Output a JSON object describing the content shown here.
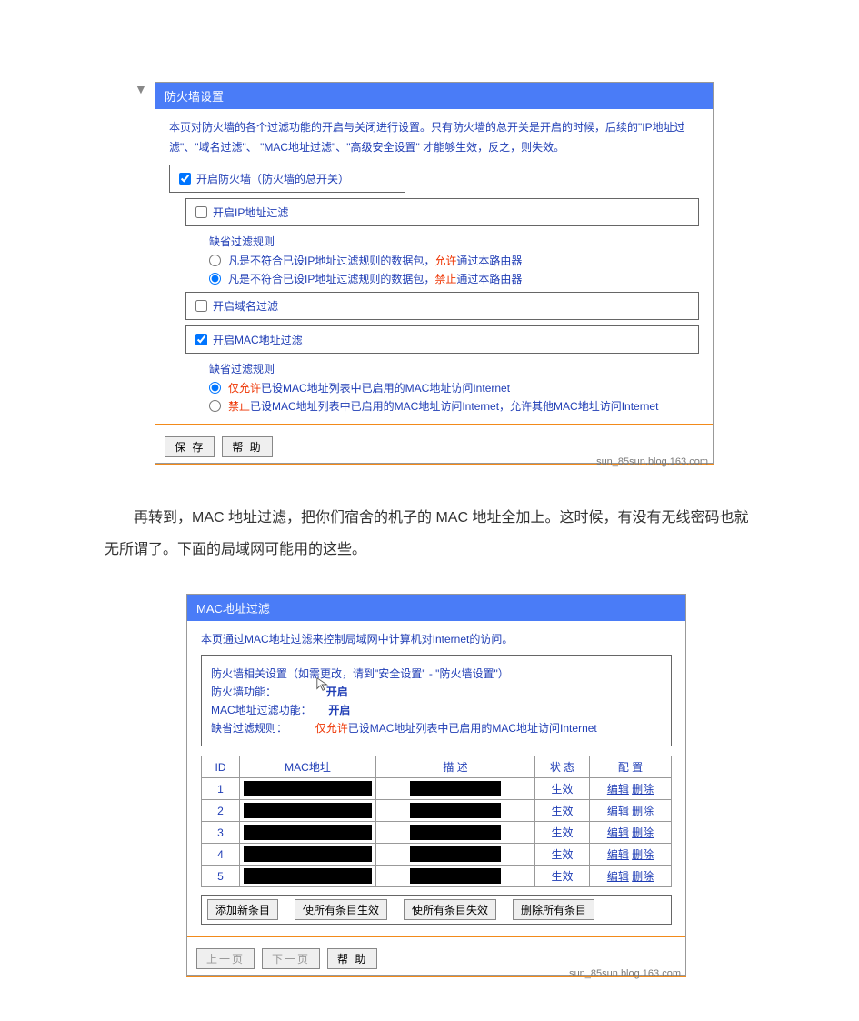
{
  "shot1": {
    "title": "防火墙设置",
    "desc": "本页对防火墙的各个过滤功能的开启与关闭进行设置。只有防火墙的总开关是开启的时候，后续的\"IP地址过滤\"、\"域名过滤\"、 \"MAC地址过滤\"、\"高级安全设置\" 才能够生效，反之，则失效。",
    "chk_firewall": {
      "checked": true,
      "label": "开启防火墙（防火墙的总开关）"
    },
    "chk_ip": {
      "checked": false,
      "label": "开启IP地址过滤"
    },
    "ip_rule_title": "缺省过滤规则",
    "ip_rule_opts": [
      {
        "value": 0,
        "checked": false,
        "pre": "凡是不符合已设IP地址过滤规则的数据包，",
        "key": "允许",
        "post": "通过本路由器"
      },
      {
        "value": 1,
        "checked": true,
        "pre": "凡是不符合已设IP地址过滤规则的数据包，",
        "key": "禁止",
        "post": "通过本路由器"
      }
    ],
    "chk_domain": {
      "checked": false,
      "label": "开启域名过滤"
    },
    "chk_mac": {
      "checked": true,
      "label": "开启MAC地址过滤"
    },
    "mac_rule_title": "缺省过滤规则",
    "mac_rule_opts": [
      {
        "value": 0,
        "checked": true,
        "key": "仅允许",
        "post": "已设MAC地址列表中已启用的MAC地址访问Internet"
      },
      {
        "value": 1,
        "checked": false,
        "key": "禁止",
        "post": "已设MAC地址列表中已启用的MAC地址访问Internet，允许其他MAC地址访问Internet"
      }
    ],
    "btn_save": "保 存",
    "btn_help": "帮 助",
    "watermark": "sun_85sun.blog.163.com"
  },
  "paragraph": "　　再转到，MAC 地址过滤，把你们宿舍的机子的 MAC 地址全加上。这时候，有没有无线密码也就无所谓了。下面的局域网可能用的这些。",
  "shot2": {
    "title": "MAC地址过滤",
    "desc": "本页通过MAC地址过滤来控制局域网中计算机对Internet的访问。",
    "info": {
      "line1": "防火墙相关设置（如需更改，请到\"安全设置\" - \"防火墙设置\"）",
      "fw_label": "防火墙功能：",
      "fw_value": "开启",
      "mac_label": "MAC地址过滤功能：",
      "mac_value": "开启",
      "rule_label": "缺省过滤规则：",
      "rule_key": "仅允许",
      "rule_post": "已设MAC地址列表中已启用的MAC地址访问Internet"
    },
    "table": {
      "headers": {
        "id": "ID",
        "mac": "MAC地址",
        "desc": "描 述",
        "status": "状 态",
        "config": "配 置"
      },
      "status_text": "生效",
      "edit": "编辑",
      "del": "删除",
      "rows": [
        1,
        2,
        3,
        4,
        5
      ]
    },
    "actions": {
      "add": "添加新条目",
      "enable_all": "使所有条目生效",
      "disable_all": "使所有条目失效",
      "delete_all": "删除所有条目"
    },
    "nav": {
      "prev": "上一页",
      "next": "下一页",
      "help": "帮 助"
    },
    "watermark": "sun_85sun.blog.163.com"
  }
}
